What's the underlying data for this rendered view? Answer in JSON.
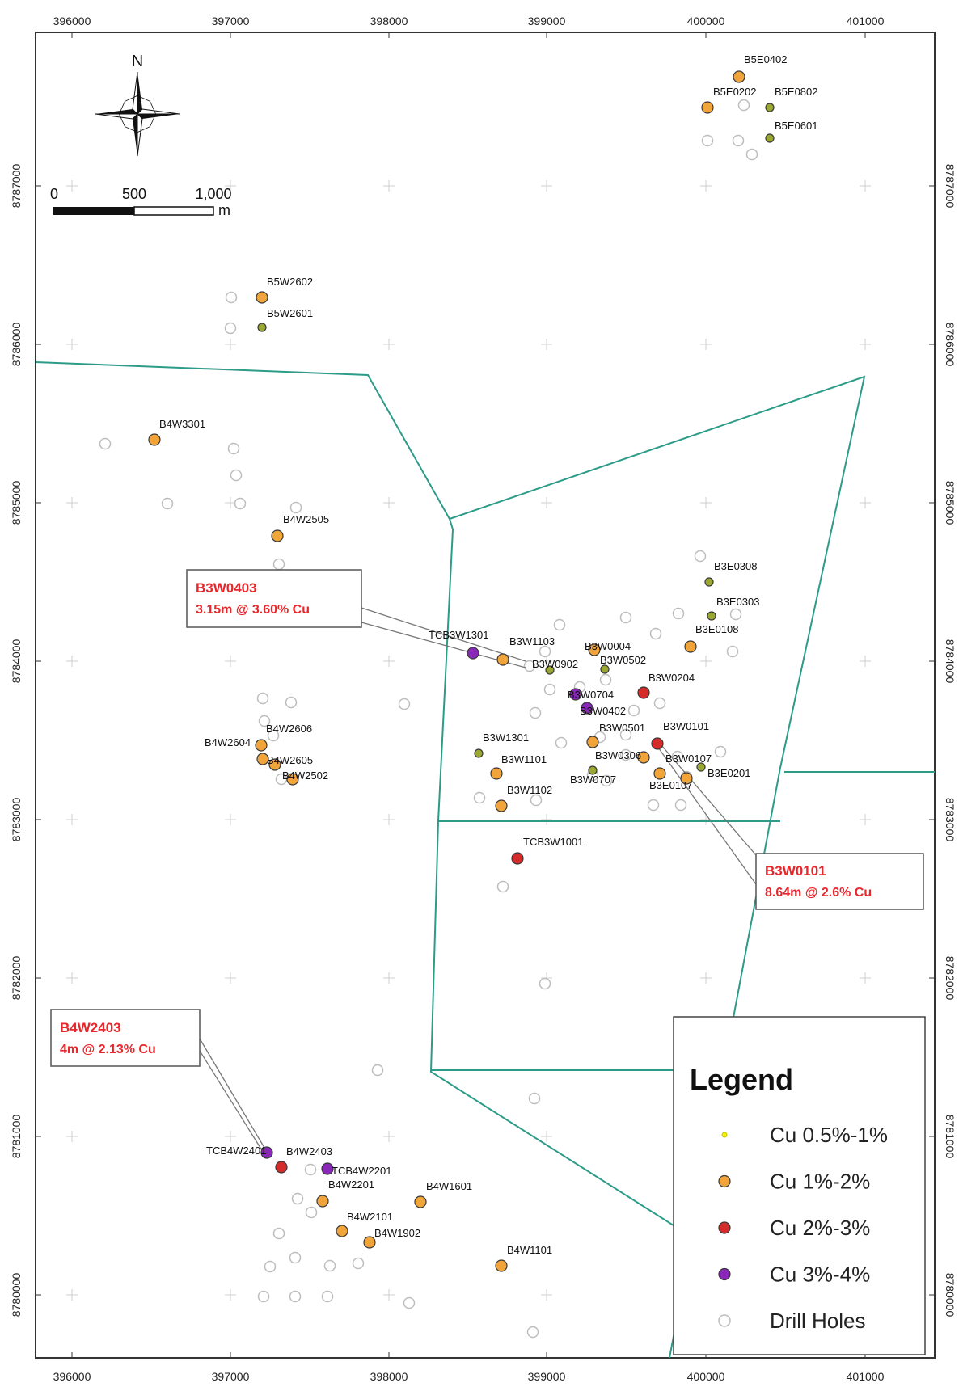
{
  "map": {
    "grid": {
      "eastings": [
        "396000",
        "397000",
        "398000",
        "399000",
        "400000",
        "401000"
      ],
      "northings": [
        "8787000",
        "8786000",
        "8785000",
        "8784000",
        "8783000",
        "8782000",
        "8781000",
        "8780000"
      ]
    },
    "north_arrow": {
      "label": "N"
    },
    "scale_bar": {
      "labels": [
        "0",
        "500",
        "1,000"
      ],
      "unit": "m"
    },
    "legend": {
      "title": "Legend",
      "items": [
        {
          "key": "cu05",
          "label": "Cu 0.5%-1%",
          "color": "#f2f200"
        },
        {
          "key": "cu1",
          "label": "Cu 1%-2%",
          "color": "#f0a43a"
        },
        {
          "key": "cu2",
          "label": "Cu 2%-3%",
          "color": "#d62b2b"
        },
        {
          "key": "cu3",
          "label": "Cu 3%-4%",
          "color": "#8a27b8"
        },
        {
          "key": "dh",
          "label": "Drill Holes",
          "color": "#ffffff"
        }
      ]
    },
    "callouts": [
      {
        "title": "B3W0403",
        "value": "3.15m @ 3.60% Cu"
      },
      {
        "title": "B3W0101",
        "value": "8.64m @ 2.6% Cu"
      },
      {
        "title": "B4W2403",
        "value": "4m @ 2.13% Cu"
      }
    ],
    "drillholes": [
      {
        "label": "B5E0402",
        "cls": "cu1"
      },
      {
        "label": "B5E0202",
        "cls": "cu1"
      },
      {
        "label": "B5E0802",
        "cls": "cu05"
      },
      {
        "label": "B5E0601",
        "cls": "cu05"
      },
      {
        "label": "B5W2602",
        "cls": "cu1"
      },
      {
        "label": "B5W2601",
        "cls": "cu05"
      },
      {
        "label": "B4W3301",
        "cls": "cu1"
      },
      {
        "label": "B4W2505",
        "cls": "cu1"
      },
      {
        "label": "B3E0308",
        "cls": "cu05"
      },
      {
        "label": "B3E0303",
        "cls": "cu05"
      },
      {
        "label": "B3E0108",
        "cls": "cu1"
      },
      {
        "label": "TCB3W1301",
        "cls": "cu3"
      },
      {
        "label": "B3W1103",
        "cls": "cu1"
      },
      {
        "label": "B3W0004",
        "cls": "cu1"
      },
      {
        "label": "B3W0502",
        "cls": "cu05"
      },
      {
        "label": "B3W0902",
        "cls": "cu05"
      },
      {
        "label": "B3W0204",
        "cls": "cu2"
      },
      {
        "label": "B3W0704",
        "cls": "cu3"
      },
      {
        "label": "B3W0402",
        "cls": "cu3"
      },
      {
        "label": "B3W0501",
        "cls": "cu1"
      },
      {
        "label": "B3W0101",
        "cls": "cu2"
      },
      {
        "label": "B4W2606",
        "cls": "cu1"
      },
      {
        "label": "B4W2604",
        "cls": "cu1"
      },
      {
        "label": "B4W2605",
        "cls": "cu1"
      },
      {
        "label": "B4W2502",
        "cls": "cu1"
      },
      {
        "label": "B3W1301",
        "cls": "cu05"
      },
      {
        "label": "B3W1101",
        "cls": "cu1"
      },
      {
        "label": "B3W0306",
        "cls": "cu1"
      },
      {
        "label": "B3W0107",
        "cls": "cu05"
      },
      {
        "label": "B3E0201",
        "cls": "cu1"
      },
      {
        "label": "B3W0707",
        "cls": "cu05"
      },
      {
        "label": "B3E0107",
        "cls": "cu1"
      },
      {
        "label": "B3W1102",
        "cls": "cu1"
      },
      {
        "label": "TCB3W1001",
        "cls": "cu2"
      },
      {
        "label": "TCB4W2401",
        "cls": "cu3"
      },
      {
        "label": "B4W2403",
        "cls": "cu2"
      },
      {
        "label": "TCB4W2201",
        "cls": "cu3"
      },
      {
        "label": "B4W2201",
        "cls": "cu1"
      },
      {
        "label": "B4W1601",
        "cls": "cu1"
      },
      {
        "label": "B4W2101",
        "cls": "cu1"
      },
      {
        "label": "B4W1902",
        "cls": "cu1"
      },
      {
        "label": "B4W1101",
        "cls": "cu1"
      }
    ]
  }
}
